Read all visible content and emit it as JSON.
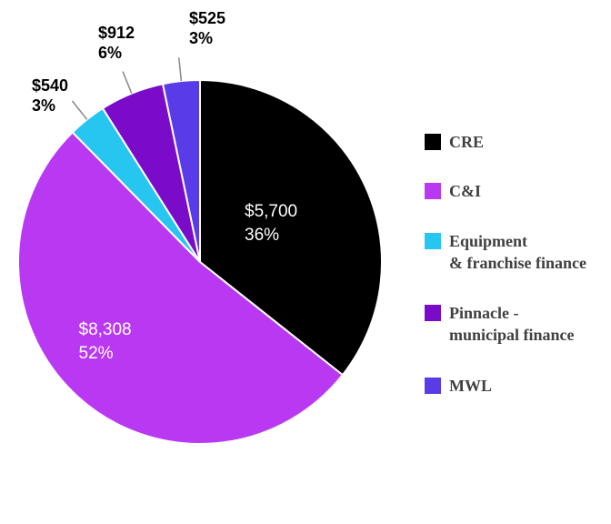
{
  "chart_data": {
    "type": "pie",
    "title": "",
    "start_angle_deg": 0,
    "direction": "clockwise",
    "series": [
      {
        "name": "CRE",
        "legend_lines": [
          "CRE"
        ],
        "value": 5700,
        "value_label": "$5,700",
        "percent_label": "36%",
        "color": "#000000",
        "label_position": "inside"
      },
      {
        "name": "C&I",
        "legend_lines": [
          "C&I"
        ],
        "value": 8308,
        "value_label": "$8,308",
        "percent_label": "52%",
        "color": "#b939f2",
        "label_position": "inside"
      },
      {
        "name": "Equipment & franchise finance",
        "legend_lines": [
          "Equipment",
          "& franchise finance"
        ],
        "value": 540,
        "value_label": "$540",
        "percent_label": "3%",
        "color": "#26c6f0",
        "label_position": "outside"
      },
      {
        "name": "Pinnacle - municipal finance",
        "legend_lines": [
          "Pinnacle -",
          "municipal finance"
        ],
        "value": 912,
        "value_label": "$912",
        "percent_label": "6%",
        "color": "#7a0cc9",
        "label_position": "outside"
      },
      {
        "name": "MWL",
        "legend_lines": [
          "MWL"
        ],
        "value": 525,
        "value_label": "$525",
        "percent_label": "3%",
        "color": "#5a3be8",
        "label_position": "outside"
      }
    ],
    "legend_position": "right"
  }
}
